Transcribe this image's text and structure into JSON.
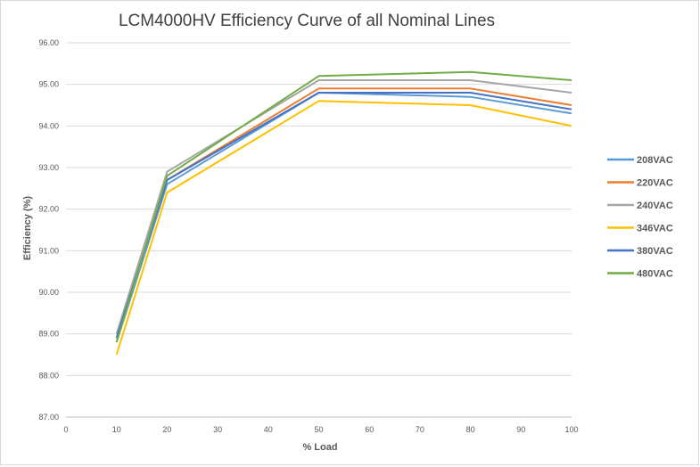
{
  "chart_data": {
    "type": "line",
    "title": "LCM4000HV Efficiency Curve of all Nominal Lines",
    "xlabel": "% Load",
    "ylabel": "Efficiency (%)",
    "xlim": [
      0,
      100
    ],
    "ylim": [
      87.0,
      96.0
    ],
    "x_ticks": [
      "0",
      "10",
      "20",
      "30",
      "40",
      "50",
      "60",
      "70",
      "80",
      "90",
      "100"
    ],
    "y_ticks": [
      "87.00",
      "88.00",
      "89.00",
      "90.00",
      "91.00",
      "92.00",
      "93.00",
      "94.00",
      "95.00",
      "96.00"
    ],
    "grid": "horizontal",
    "legend_position": "right",
    "x": [
      10,
      20,
      50,
      80,
      100
    ],
    "series": [
      {
        "name": "208VAC",
        "color": "#5B9BD5",
        "values": [
          88.8,
          92.6,
          94.8,
          94.7,
          94.3
        ]
      },
      {
        "name": "220VAC",
        "color": "#ED7D31",
        "values": [
          88.9,
          92.7,
          94.9,
          94.9,
          94.5
        ]
      },
      {
        "name": "240VAC",
        "color": "#A5A5A5",
        "values": [
          89.0,
          92.9,
          95.1,
          95.1,
          94.8
        ]
      },
      {
        "name": "346VAC",
        "color": "#FFC000",
        "values": [
          88.5,
          92.4,
          94.6,
          94.5,
          94.0
        ]
      },
      {
        "name": "380VAC",
        "color": "#4472C4",
        "values": [
          88.9,
          92.7,
          94.8,
          94.8,
          94.4
        ]
      },
      {
        "name": "480VAC",
        "color": "#70AD47",
        "values": [
          88.8,
          92.8,
          95.2,
          95.3,
          95.1
        ]
      }
    ]
  }
}
